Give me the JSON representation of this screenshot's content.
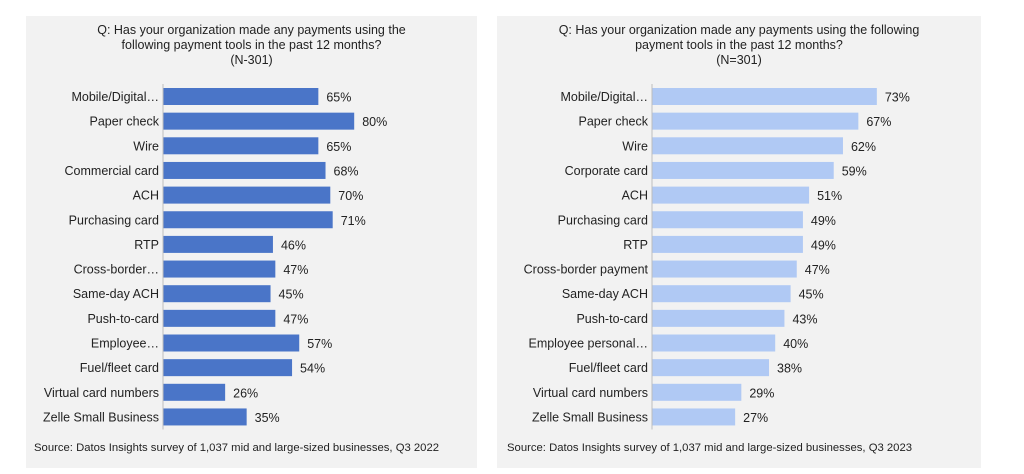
{
  "colors": {
    "series_2022": "#4a75c8",
    "series_2023": "#b0c9f4",
    "panel_bg": "#f2f2f2",
    "axis": "#bdbdbd"
  },
  "chart_data": [
    {
      "type": "bar",
      "orientation": "horizontal",
      "title": [
        "Q: Has your organization made any payments using the",
        "following payment tools in the past 12 months?",
        "(N-301)"
      ],
      "categories": [
        "Mobile/Digital…",
        "Paper check",
        "Wire",
        "Commercial card",
        "ACH",
        "Purchasing card",
        "RTP",
        "Cross-border…",
        "Same-day ACH",
        "Push-to-card",
        "Employee…",
        "Fuel/fleet card",
        "Virtual card numbers",
        "Zelle Small Business"
      ],
      "values": [
        65,
        80,
        65,
        68,
        70,
        71,
        46,
        47,
        45,
        47,
        57,
        54,
        26,
        35
      ],
      "value_labels": [
        "65%",
        "80%",
        "65%",
        "68%",
        "70%",
        "71%",
        "46%",
        "47%",
        "45%",
        "47%",
        "57%",
        "54%",
        "26%",
        "35%"
      ],
      "unit": "%",
      "xlim": [
        0,
        100
      ],
      "grid": false,
      "legend": "none",
      "source": "Source: Datos Insights survey of 1,037 mid and large-sized businesses, Q3 2022"
    },
    {
      "type": "bar",
      "orientation": "horizontal",
      "title": [
        "Q: Has your organization made any payments using the following",
        "payment tools in the past 12 months?",
        "(N=301)"
      ],
      "categories": [
        "Mobile/Digital…",
        "Paper check",
        "Wire",
        "Corporate card",
        "ACH",
        "Purchasing card",
        "RTP",
        "Cross-border payment",
        "Same-day ACH",
        "Push-to-card",
        "Employee personal…",
        "Fuel/fleet card",
        "Virtual card numbers",
        "Zelle Small Business"
      ],
      "values": [
        73,
        67,
        62,
        59,
        51,
        49,
        49,
        47,
        45,
        43,
        40,
        38,
        29,
        27
      ],
      "value_labels": [
        "73%",
        "67%",
        "62%",
        "59%",
        "51%",
        "49%",
        "49%",
        "47%",
        "45%",
        "43%",
        "40%",
        "38%",
        "29%",
        "27%"
      ],
      "unit": "%",
      "xlim": [
        0,
        100
      ],
      "grid": false,
      "legend": "none",
      "source": "Source: Datos Insights survey of 1,037 mid and large-sized businesses, Q3 2023"
    }
  ]
}
